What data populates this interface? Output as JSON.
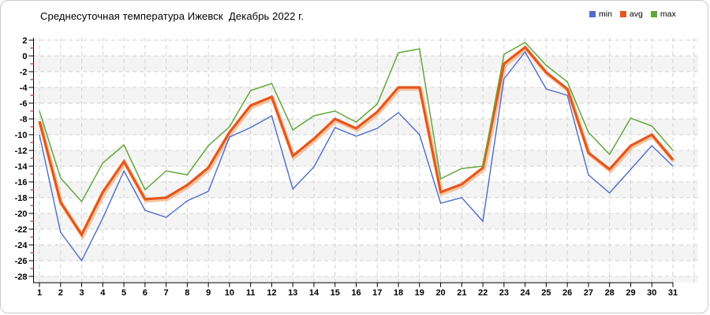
{
  "frame": {
    "border_color": "#c9c9c9",
    "background": "#ffffff"
  },
  "header": {
    "title": "Среднесуточная температура Ижевск  Декабрь 2022 г."
  },
  "legend": {
    "position": "top-right",
    "items": [
      {
        "label": "min",
        "color": "#4d6ccb"
      },
      {
        "label": "avg",
        "color": "#e2571e"
      },
      {
        "label": "max",
        "color": "#62a839"
      }
    ]
  },
  "chart_data": {
    "type": "line",
    "title": "Среднесуточная температура Ижевск  Декабрь 2022 г.",
    "xlabel": "",
    "ylabel": "",
    "categories": [
      1,
      2,
      3,
      4,
      5,
      6,
      7,
      8,
      9,
      10,
      11,
      12,
      13,
      14,
      15,
      16,
      17,
      18,
      19,
      20,
      21,
      22,
      23,
      24,
      25,
      26,
      27,
      28,
      29,
      30,
      31
    ],
    "series": [
      {
        "name": "min",
        "color": "#4d6ccb",
        "values": [
          -10.0,
          -22.4,
          -26.0,
          -20.6,
          -14.6,
          -19.6,
          -20.5,
          -18.4,
          -17.2,
          -10.3,
          -9.1,
          -7.6,
          -16.9,
          -14.1,
          -9.1,
          -10.2,
          -9.2,
          -7.2,
          -10.0,
          -18.7,
          -18.0,
          -21.0,
          -2.9,
          0.5,
          -4.2,
          -5.0,
          -15.1,
          -17.4,
          -14.4,
          -11.4,
          -14.0
        ]
      },
      {
        "name": "avg",
        "color": "#e2571e",
        "halo_color": "#f7bd92",
        "values": [
          -8.3,
          -18.6,
          -22.7,
          -17.3,
          -13.4,
          -18.2,
          -18.0,
          -16.4,
          -14.2,
          -9.7,
          -6.3,
          -5.2,
          -12.7,
          -10.5,
          -8.0,
          -9.2,
          -7.1,
          -4.0,
          -4.0,
          -17.3,
          -16.3,
          -14.2,
          -1.0,
          1.1,
          -2.1,
          -4.2,
          -12.3,
          -14.4,
          -11.4,
          -10.0,
          -13.2
        ]
      },
      {
        "name": "max",
        "color": "#62a839",
        "values": [
          -7.0,
          -15.5,
          -18.5,
          -13.6,
          -11.3,
          -17.0,
          -14.6,
          -15.1,
          -11.4,
          -9.0,
          -4.4,
          -3.5,
          -9.4,
          -7.6,
          -7.0,
          -8.4,
          -6.1,
          0.4,
          0.9,
          -15.6,
          -14.3,
          -14.0,
          0.2,
          1.7,
          -1.2,
          -3.3,
          -9.7,
          -12.5,
          -7.9,
          -8.9,
          -12.0
        ]
      }
    ],
    "ylim": [
      -28,
      2
    ],
    "ytick_step": 2,
    "yticks": [
      2,
      0,
      -2,
      -4,
      -6,
      -8,
      -10,
      -12,
      -14,
      -16,
      -18,
      -20,
      -22,
      -24,
      -26,
      -28
    ],
    "grid": "dashed",
    "band_fill": "#f4f4f4",
    "grid_color": "#d2d2d2",
    "minor_tick_color": "#cc2222",
    "legend_position": "top-right"
  }
}
